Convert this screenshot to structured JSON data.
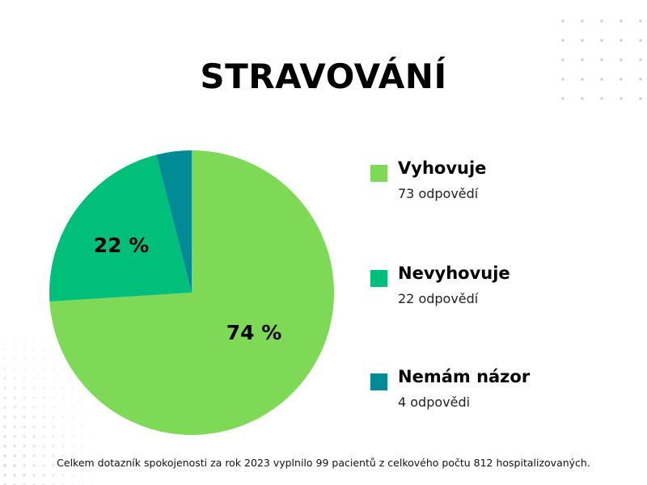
{
  "title": "STRAVOVÁNÍ",
  "chart_data": {
    "type": "pie",
    "title": "STRAVOVÁNÍ",
    "slices": [
      {
        "name": "Vyhovuje",
        "value": 74,
        "count_label": "73 odpovědí",
        "percent_label": "74 %",
        "color": "#7ed957"
      },
      {
        "name": "Nevyhovuje",
        "value": 22,
        "count_label": "22 odpovědí",
        "percent_label": "22 %",
        "color": "#00bf7a"
      },
      {
        "name": "Nemám názor",
        "value": 4,
        "count_label": "4 odpovědi",
        "percent_label": "",
        "color": "#008b96"
      }
    ],
    "legend_position": "right"
  },
  "footnote": "Celkem dotazník spokojenosti za rok  2023 vyplnilo 99 pacientů z celkového počtu 812 hospitalizovaných."
}
